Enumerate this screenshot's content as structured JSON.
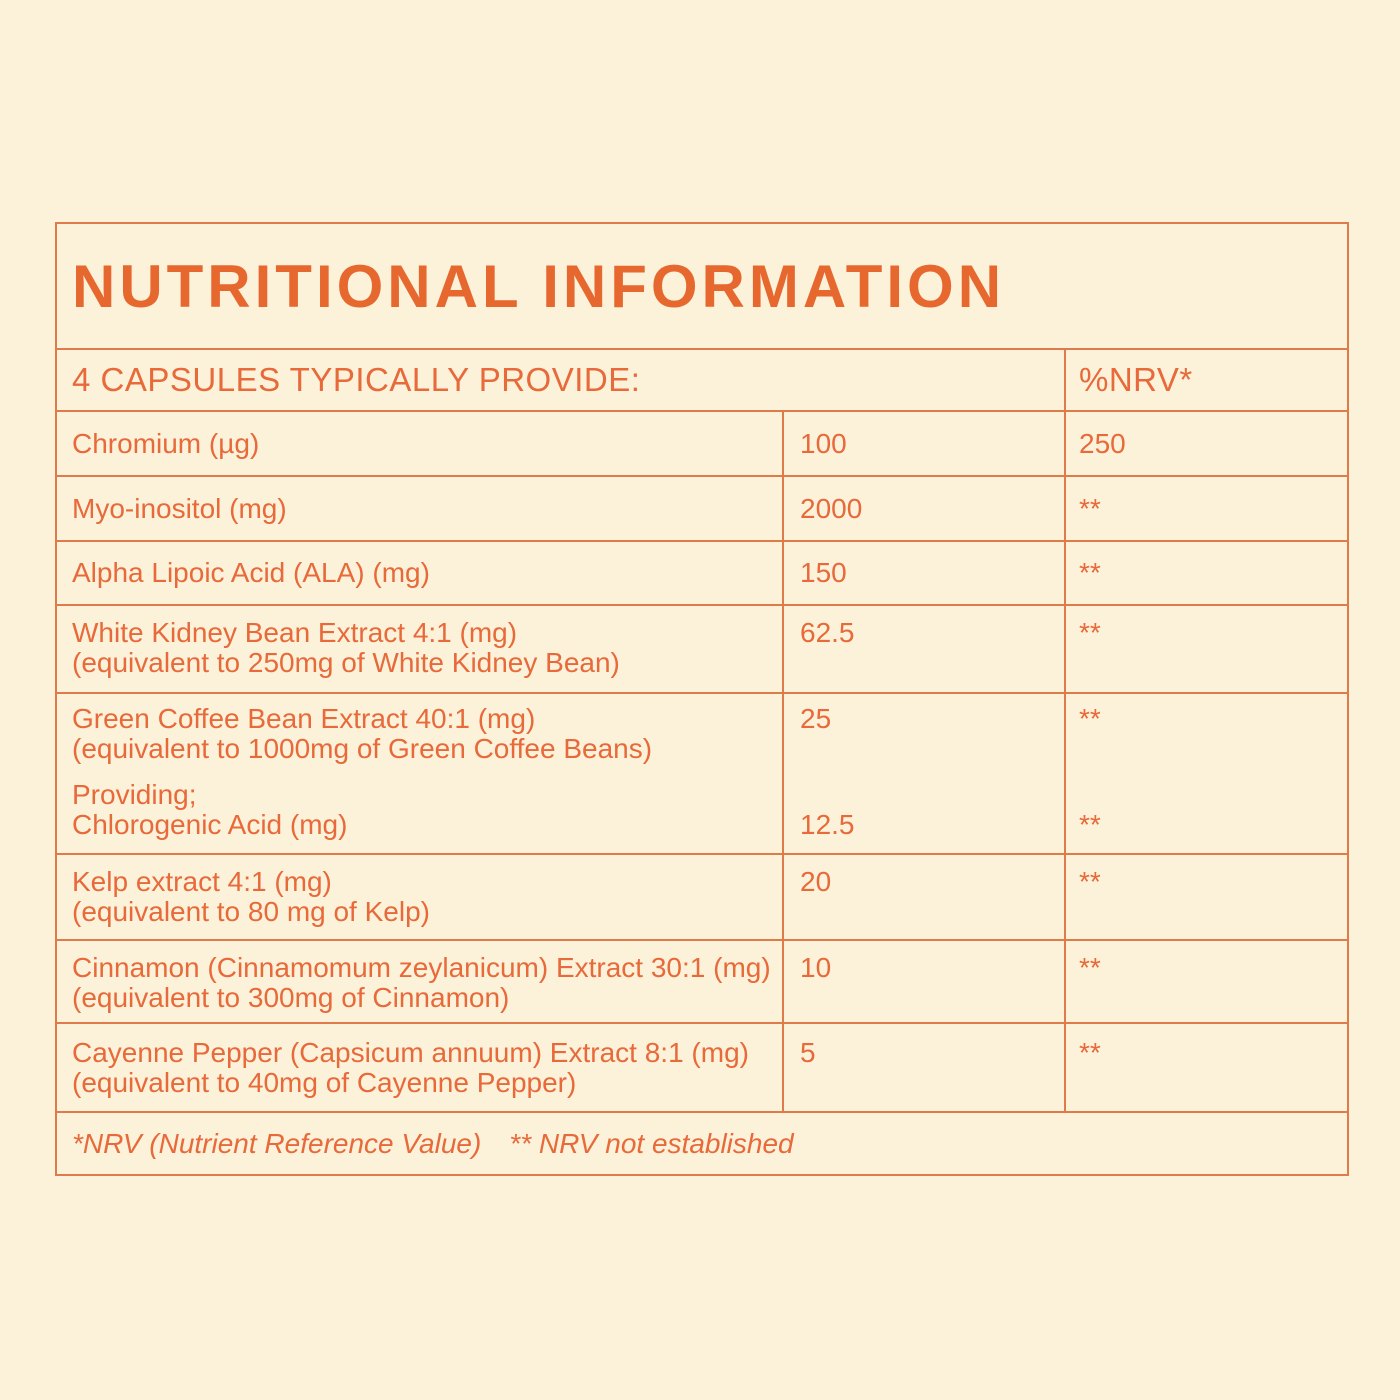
{
  "colors": {
    "background": "#FBF2D9",
    "text_orange": "#E8693A",
    "title_orange": "#E7682F",
    "border_orange": "#DF7A4B"
  },
  "table": {
    "title": "NUTRITIONAL INFORMATION",
    "header": {
      "serving": "4 CAPSULES TYPICALLY PROVIDE:",
      "nrv": "%NRV*"
    },
    "rows": [
      {
        "name_lines": [
          "Chromium (µg)"
        ],
        "amount": "100",
        "nrv": "250"
      },
      {
        "name_lines": [
          "Myo-inositol (mg)"
        ],
        "amount": "2000",
        "nrv": "**"
      },
      {
        "name_lines": [
          "Alpha Lipoic Acid (ALA) (mg)"
        ],
        "amount": "150",
        "nrv": "**"
      },
      {
        "name_lines": [
          "White Kidney Bean Extract 4:1 (mg)",
          "(equivalent to 250mg of White Kidney Bean)"
        ],
        "amount": "62.5",
        "nrv": "**"
      },
      {
        "name_lines": [
          "Green Coffee Bean Extract 40:1 (mg)",
          "(equivalent to 1000mg of Green Coffee Beans)"
        ],
        "name_lines2": [
          "Providing;",
          "Chlorogenic Acid (mg)"
        ],
        "amount": "25",
        "nrv": "**",
        "amount2": "12.5",
        "nrv2": "**"
      },
      {
        "name_lines": [
          "Kelp extract 4:1 (mg)",
          "(equivalent to 80 mg of Kelp)"
        ],
        "amount": "20",
        "nrv": "**"
      },
      {
        "name_lines": [
          "Cinnamon (Cinnamomum zeylanicum) Extract 30:1 (mg)",
          "(equivalent to 300mg of Cinnamon)"
        ],
        "amount": "10",
        "nrv": "**"
      },
      {
        "name_lines": [
          "Cayenne Pepper (Capsicum annuum) Extract 8:1 (mg)",
          "(equivalent to 40mg of Cayenne Pepper)"
        ],
        "amount": "5",
        "nrv": "**"
      }
    ],
    "footnote": {
      "part1": "*NRV (Nutrient Reference Value)",
      "part2": "** NRV not established"
    }
  }
}
